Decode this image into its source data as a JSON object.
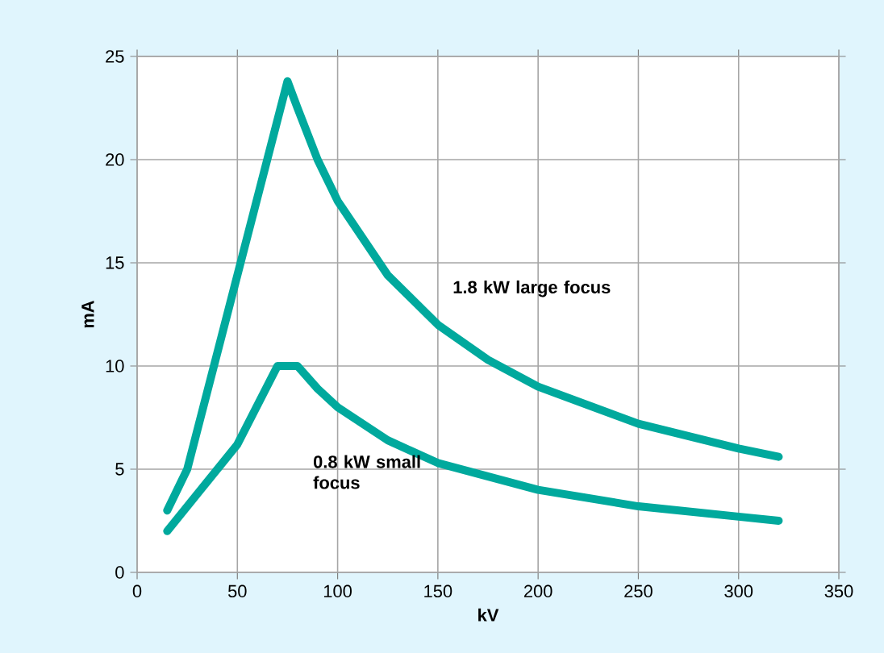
{
  "chart_data": {
    "type": "line",
    "xlabel": "kV",
    "ylabel": "mA",
    "xlim": [
      0,
      350
    ],
    "ylim": [
      0,
      25
    ],
    "xticks": [
      0,
      50,
      100,
      150,
      200,
      250,
      300,
      350
    ],
    "yticks": [
      0,
      5,
      10,
      15,
      20,
      25
    ],
    "grid": true,
    "legend": false,
    "marker": "none",
    "line_style": "solid",
    "series": [
      {
        "name": "1.8 kW large focus",
        "color": "#00a99d",
        "x": [
          15,
          25,
          75,
          80,
          90,
          100,
          125,
          150,
          175,
          200,
          250,
          300,
          320
        ],
        "values": [
          3,
          5,
          23.8,
          22.5,
          20,
          18,
          14.4,
          12,
          10.3,
          9,
          7.2,
          6,
          5.6
        ]
      },
      {
        "name": "0.8 kW small focus",
        "color": "#00a99d",
        "x": [
          15,
          50,
          70,
          80,
          90,
          100,
          125,
          150,
          200,
          250,
          300,
          320
        ],
        "values": [
          2,
          6.2,
          10,
          10,
          8.9,
          8,
          6.4,
          5.3,
          4,
          3.2,
          2.7,
          2.5
        ]
      }
    ]
  }
}
